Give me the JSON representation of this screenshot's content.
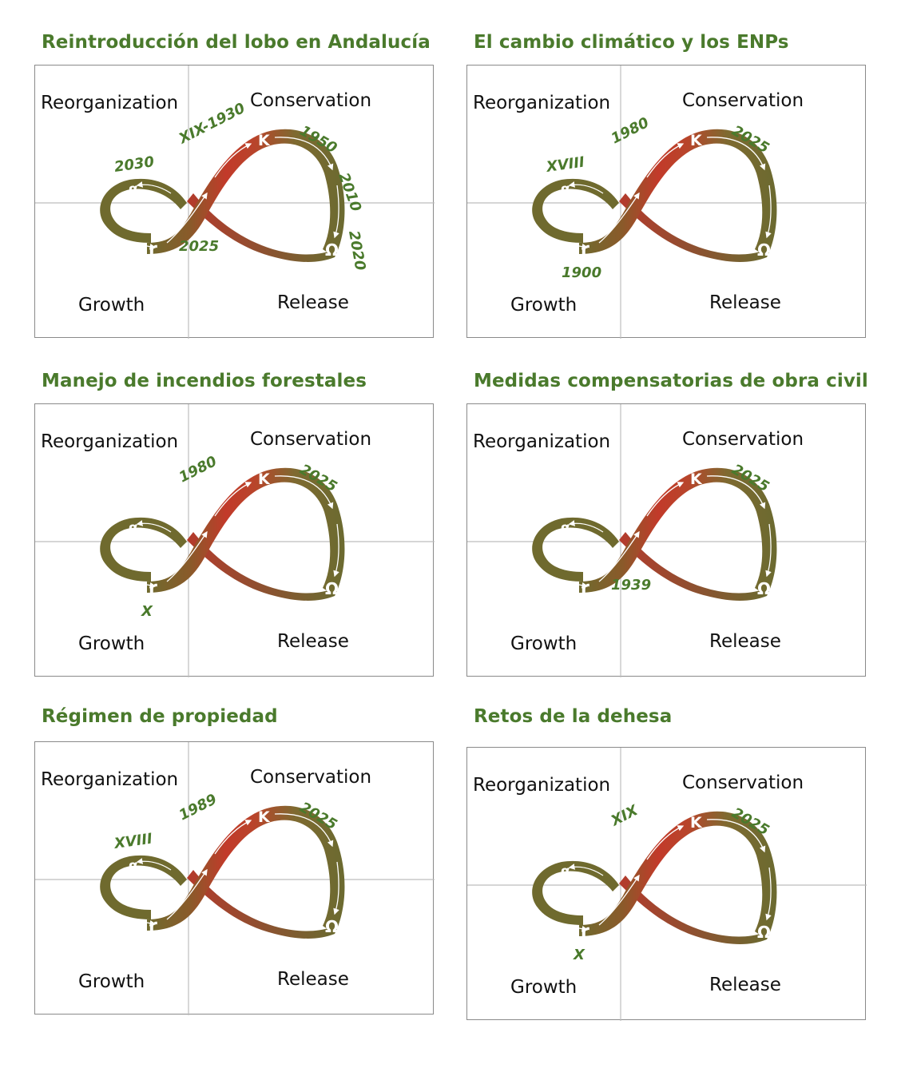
{
  "quadrant_labels": {
    "reorganization": "Reorganization",
    "conservation": "Conservation",
    "growth": "Growth",
    "release": "Release"
  },
  "phase_symbols": {
    "alpha": "α",
    "r": "r",
    "k": "K",
    "omega": "Ω"
  },
  "colors": {
    "title": "#4a7a2c",
    "annotation": "#4a7a2c",
    "loop_olive": "#6b6a30",
    "loop_red": "#c0392b"
  },
  "panels": [
    {
      "title": "Reintroducción del lobo en Andalucía",
      "annotations": [
        {
          "text": "2030",
          "pos": "alpha"
        },
        {
          "text": "XIX-1930",
          "pos": "growth_upper"
        },
        {
          "text": "1950",
          "pos": "k_right"
        },
        {
          "text": "2010",
          "pos": "right_upper"
        },
        {
          "text": "2020",
          "pos": "right_lower"
        },
        {
          "text": "2025",
          "pos": "cross_below"
        }
      ]
    },
    {
      "title": "El cambio climático y los ENPs",
      "annotations": [
        {
          "text": "XVIII",
          "pos": "alpha"
        },
        {
          "text": "1980",
          "pos": "growth_upper"
        },
        {
          "text": "2025",
          "pos": "k_right"
        },
        {
          "text": "1900",
          "pos": "r_below"
        }
      ]
    },
    {
      "title": "Manejo de incendios forestales",
      "annotations": [
        {
          "text": "1980",
          "pos": "growth_upper"
        },
        {
          "text": "2025",
          "pos": "k_right"
        },
        {
          "text": "X",
          "pos": "r_below_left"
        }
      ]
    },
    {
      "title": "Medidas compensatorias de obra civil",
      "annotations": [
        {
          "text": "2025",
          "pos": "k_right"
        },
        {
          "text": "1939",
          "pos": "cross_below"
        }
      ]
    },
    {
      "title": "Régimen de propiedad",
      "annotations": [
        {
          "text": "XVIII",
          "pos": "alpha"
        },
        {
          "text": "1989",
          "pos": "growth_upper"
        },
        {
          "text": "2025",
          "pos": "k_right"
        }
      ]
    },
    {
      "title": "Retos de la dehesa",
      "annotations": [
        {
          "text": "XIX",
          "pos": "growth_upper"
        },
        {
          "text": "2025",
          "pos": "k_right"
        },
        {
          "text": "X",
          "pos": "r_below_left"
        }
      ]
    }
  ]
}
